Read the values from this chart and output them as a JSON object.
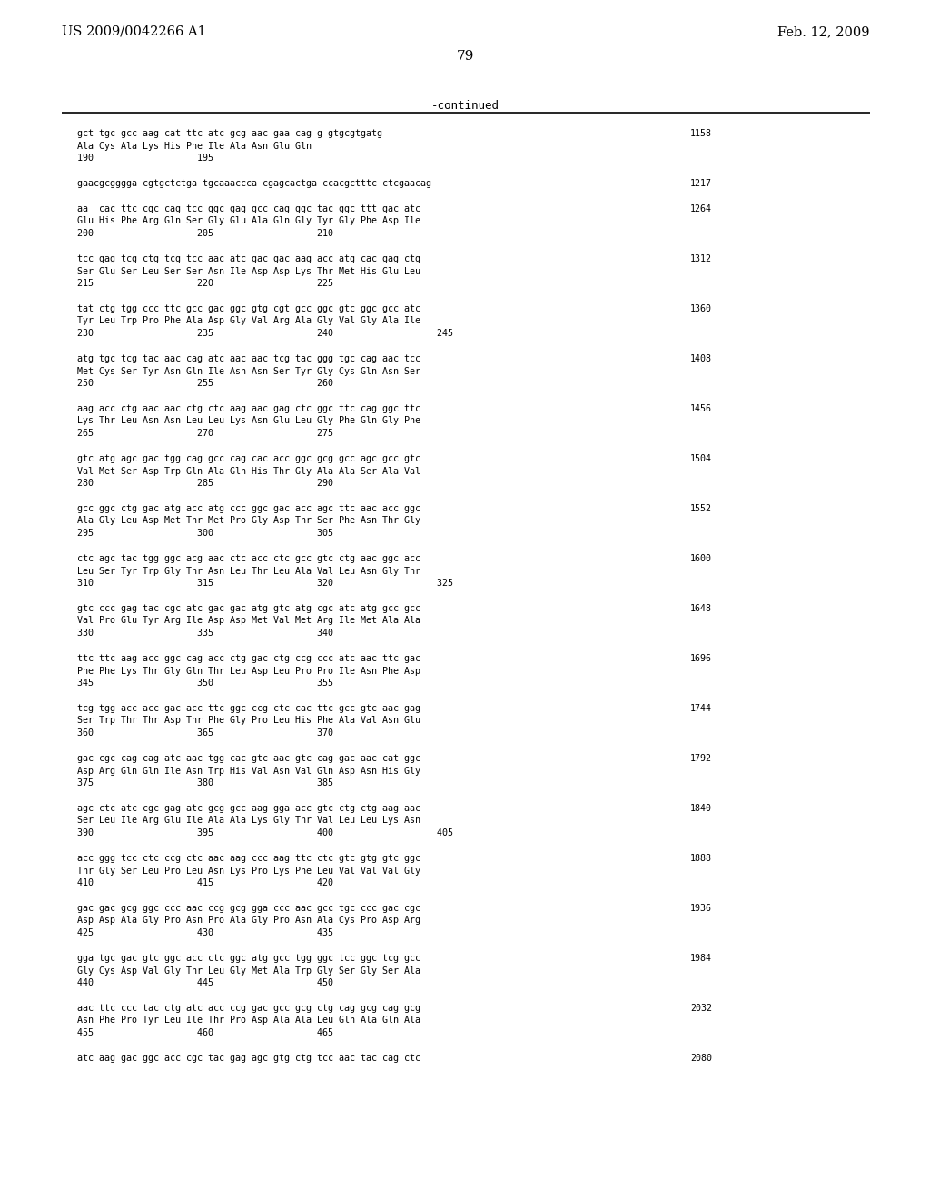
{
  "header_left": "US 2009/0042266 A1",
  "header_right": "Feb. 12, 2009",
  "page_number": "79",
  "continued_label": "-continued",
  "background_color": "#ffffff",
  "text_color": "#000000",
  "content_blocks": [
    {
      "dna": "gct tgc gcc aag cat ttc atc gcg aac gaa cag g gtgcgtgatg",
      "aa": "Ala Cys Ala Lys His Phe Ile Ala Asn Glu Gln",
      "nums": "190                   195",
      "index": "1158"
    },
    {
      "dna": "gaacgcgggga cgtgctctga tgcaaaccca cgagcactga ccacgctttc ctcgaacag",
      "aa": "",
      "nums": "",
      "index": "1217"
    },
    {
      "dna": "aa  cac ttc cgc cag tcc ggc gag gcc cag ggc tac ggc ttt gac atc",
      "aa": "Glu His Phe Arg Gln Ser Gly Glu Ala Gln Gly Tyr Gly Phe Asp Ile",
      "nums": "200                   205                   210",
      "index": "1264"
    },
    {
      "dna": "tcc gag tcg ctg tcg tcc aac atc gac gac aag acc atg cac gag ctg",
      "aa": "Ser Glu Ser Leu Ser Ser Asn Ile Asp Asp Lys Thr Met His Glu Leu",
      "nums": "215                   220                   225",
      "index": "1312"
    },
    {
      "dna": "tat ctg tgg ccc ttc gcc gac ggc gtg cgt gcc ggc gtc ggc gcc atc",
      "aa": "Tyr Leu Trp Pro Phe Ala Asp Gly Val Arg Ala Gly Val Gly Ala Ile",
      "nums": "230                   235                   240                   245",
      "index": "1360"
    },
    {
      "dna": "atg tgc tcg tac aac cag atc aac aac tcg tac ggg tgc cag aac tcc",
      "aa": "Met Cys Ser Tyr Asn Gln Ile Asn Asn Ser Tyr Gly Cys Gln Asn Ser",
      "nums": "250                   255                   260",
      "index": "1408"
    },
    {
      "dna": "aag acc ctg aac aac ctg ctc aag aac gag ctc ggc ttc cag ggc ttc",
      "aa": "Lys Thr Leu Asn Asn Leu Leu Lys Asn Glu Leu Gly Phe Gln Gly Phe",
      "nums": "265                   270                   275",
      "index": "1456"
    },
    {
      "dna": "gtc atg agc gac tgg cag gcc cag cac acc ggc gcg gcc agc gcc gtc",
      "aa": "Val Met Ser Asp Trp Gln Ala Gln His Thr Gly Ala Ala Ser Ala Val",
      "nums": "280                   285                   290",
      "index": "1504"
    },
    {
      "dna": "gcc ggc ctg gac atg acc atg ccc ggc gac acc agc ttc aac acc ggc",
      "aa": "Ala Gly Leu Asp Met Thr Met Pro Gly Asp Thr Ser Phe Asn Thr Gly",
      "nums": "295                   300                   305",
      "index": "1552"
    },
    {
      "dna": "ctc agc tac tgg ggc acg aac ctc acc ctc gcc gtc ctg aac ggc acc",
      "aa": "Leu Ser Tyr Trp Gly Thr Asn Leu Thr Leu Ala Val Leu Asn Gly Thr",
      "nums": "310                   315                   320                   325",
      "index": "1600"
    },
    {
      "dna": "gtc ccc gag tac cgc atc gac gac atg gtc atg cgc atc atg gcc gcc",
      "aa": "Val Pro Glu Tyr Arg Ile Asp Asp Met Val Met Arg Ile Met Ala Ala",
      "nums": "330                   335                   340",
      "index": "1648"
    },
    {
      "dna": "ttc ttc aag acc ggc cag acc ctg gac ctg ccg ccc atc aac ttc gac",
      "aa": "Phe Phe Lys Thr Gly Gln Thr Leu Asp Leu Pro Pro Ile Asn Phe Asp",
      "nums": "345                   350                   355",
      "index": "1696"
    },
    {
      "dna": "tcg tgg acc acc gac acc ttc ggc ccg ctc cac ttc gcc gtc aac gag",
      "aa": "Ser Trp Thr Thr Asp Thr Phe Gly Pro Leu His Phe Ala Val Asn Glu",
      "nums": "360                   365                   370",
      "index": "1744"
    },
    {
      "dna": "gac cgc cag cag atc aac tgg cac gtc aac gtc cag gac aac cat ggc",
      "aa": "Asp Arg Gln Gln Ile Asn Trp His Val Asn Val Gln Asp Asn His Gly",
      "nums": "375                   380                   385",
      "index": "1792"
    },
    {
      "dna": "agc ctc atc cgc gag atc gcg gcc aag gga acc gtc ctg ctg aag aac",
      "aa": "Ser Leu Ile Arg Glu Ile Ala Ala Lys Gly Thr Val Leu Leu Lys Asn",
      "nums": "390                   395                   400                   405",
      "index": "1840"
    },
    {
      "dna": "acc ggg tcc ctc ccg ctc aac aag ccc aag ttc ctc gtc gtg gtc ggc",
      "aa": "Thr Gly Ser Leu Pro Leu Asn Lys Pro Lys Phe Leu Val Val Val Gly",
      "nums": "410                   415                   420",
      "index": "1888"
    },
    {
      "dna": "gac gac gcg ggc ccc aac ccg gcg gga ccc aac gcc tgc ccc gac cgc",
      "aa": "Asp Asp Ala Gly Pro Asn Pro Ala Gly Pro Asn Ala Cys Pro Asp Arg",
      "nums": "425                   430                   435",
      "index": "1936"
    },
    {
      "dna": "gga tgc gac gtc ggc acc ctc ggc atg gcc tgg ggc tcc ggc tcg gcc",
      "aa": "Gly Cys Asp Val Gly Thr Leu Gly Met Ala Trp Gly Ser Gly Ser Ala",
      "nums": "440                   445                   450",
      "index": "1984"
    },
    {
      "dna": "aac ttc ccc tac ctg atc acc ccg gac gcc gcg ctg cag gcg cag gcg",
      "aa": "Asn Phe Pro Tyr Leu Ile Thr Pro Asp Ala Ala Leu Gln Ala Gln Ala",
      "nums": "455                   460                   465",
      "index": "2032"
    },
    {
      "dna": "atc aag gac ggc acc cgc tac gag agc gtg ctg tcc aac tac cag ctc",
      "aa": "",
      "nums": "",
      "index": "2080"
    }
  ]
}
